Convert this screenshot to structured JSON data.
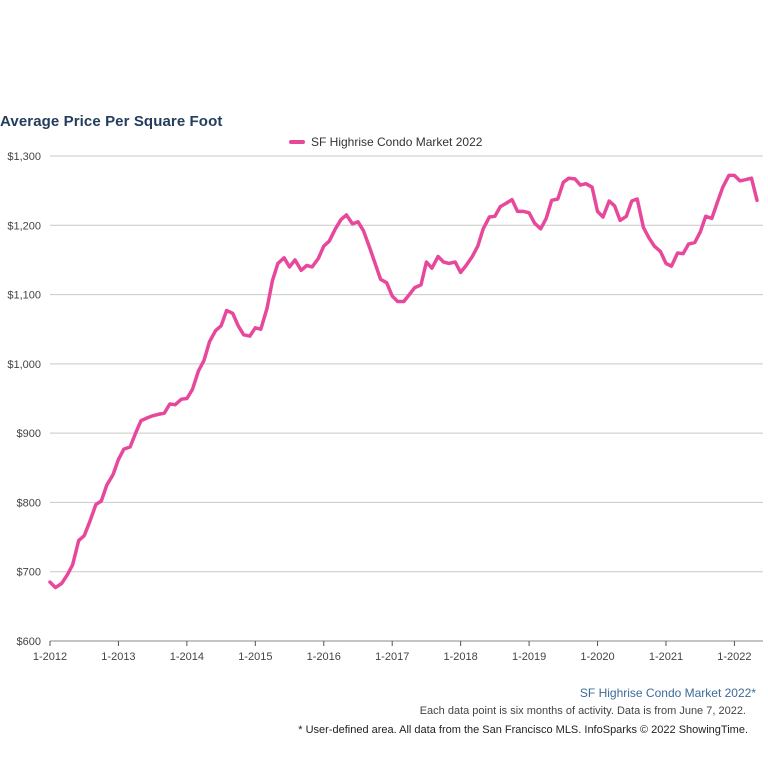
{
  "chart_data": {
    "type": "line",
    "title": "Average Price Per Square Foot",
    "xlabel": "",
    "ylabel": "",
    "ylim": [
      600,
      1300
    ],
    "yticks": [
      600,
      700,
      800,
      900,
      1000,
      1100,
      1200,
      1300
    ],
    "ytick_labels": [
      "$600",
      "$700",
      "$800",
      "$900",
      "$1,000",
      "$1,100",
      "$1,200",
      "$1,300"
    ],
    "xticks": [
      2012,
      2013,
      2014,
      2015,
      2016,
      2017,
      2018,
      2019,
      2020,
      2021,
      2022
    ],
    "xtick_labels": [
      "1-2012",
      "1-2013",
      "1-2014",
      "1-2015",
      "1-2016",
      "1-2017",
      "1-2018",
      "1-2019",
      "1-2020",
      "1-2021",
      "1-2022"
    ],
    "xlim": [
      2012,
      2022.33
    ],
    "grid": true,
    "series": [
      {
        "name": "SF Highrise Condo Market 2022",
        "color": "#e8489c",
        "points": [
          [
            2012.0,
            685
          ],
          [
            2012.08,
            677
          ],
          [
            2012.17,
            683
          ],
          [
            2012.25,
            695
          ],
          [
            2012.33,
            710
          ],
          [
            2012.42,
            745
          ],
          [
            2012.5,
            752
          ],
          [
            2012.58,
            772
          ],
          [
            2012.67,
            797
          ],
          [
            2012.75,
            802
          ],
          [
            2012.83,
            825
          ],
          [
            2012.92,
            840
          ],
          [
            2013.0,
            862
          ],
          [
            2013.08,
            877
          ],
          [
            2013.17,
            880
          ],
          [
            2013.25,
            900
          ],
          [
            2013.33,
            918
          ],
          [
            2013.42,
            922
          ],
          [
            2013.5,
            925
          ],
          [
            2013.58,
            927
          ],
          [
            2013.67,
            929
          ],
          [
            2013.75,
            942
          ],
          [
            2013.83,
            941
          ],
          [
            2013.92,
            949
          ],
          [
            2014.0,
            950
          ],
          [
            2014.08,
            963
          ],
          [
            2014.17,
            990
          ],
          [
            2014.25,
            1005
          ],
          [
            2014.33,
            1032
          ],
          [
            2014.42,
            1048
          ],
          [
            2014.5,
            1055
          ],
          [
            2014.58,
            1077
          ],
          [
            2014.67,
            1073
          ],
          [
            2014.75,
            1055
          ],
          [
            2014.83,
            1042
          ],
          [
            2014.92,
            1040
          ],
          [
            2015.0,
            1052
          ],
          [
            2015.08,
            1050
          ],
          [
            2015.17,
            1080
          ],
          [
            2015.25,
            1120
          ],
          [
            2015.33,
            1145
          ],
          [
            2015.42,
            1153
          ],
          [
            2015.5,
            1140
          ],
          [
            2015.58,
            1150
          ],
          [
            2015.67,
            1135
          ],
          [
            2015.75,
            1142
          ],
          [
            2015.83,
            1140
          ],
          [
            2015.92,
            1152
          ],
          [
            2016.0,
            1170
          ],
          [
            2016.08,
            1177
          ],
          [
            2016.17,
            1195
          ],
          [
            2016.25,
            1208
          ],
          [
            2016.33,
            1215
          ],
          [
            2016.42,
            1202
          ],
          [
            2016.5,
            1205
          ],
          [
            2016.58,
            1192
          ],
          [
            2016.67,
            1168
          ],
          [
            2016.75,
            1145
          ],
          [
            2016.83,
            1122
          ],
          [
            2016.92,
            1117
          ],
          [
            2017.0,
            1098
          ],
          [
            2017.08,
            1090
          ],
          [
            2017.17,
            1090
          ],
          [
            2017.25,
            1100
          ],
          [
            2017.33,
            1110
          ],
          [
            2017.42,
            1114
          ],
          [
            2017.5,
            1147
          ],
          [
            2017.58,
            1138
          ],
          [
            2017.67,
            1155
          ],
          [
            2017.75,
            1147
          ],
          [
            2017.83,
            1145
          ],
          [
            2017.92,
            1147
          ],
          [
            2018.0,
            1132
          ],
          [
            2018.08,
            1142
          ],
          [
            2018.17,
            1155
          ],
          [
            2018.25,
            1170
          ],
          [
            2018.33,
            1195
          ],
          [
            2018.42,
            1212
          ],
          [
            2018.5,
            1213
          ],
          [
            2018.58,
            1227
          ],
          [
            2018.67,
            1232
          ],
          [
            2018.75,
            1237
          ],
          [
            2018.83,
            1220
          ],
          [
            2018.92,
            1220
          ],
          [
            2019.0,
            1218
          ],
          [
            2019.08,
            1203
          ],
          [
            2019.17,
            1195
          ],
          [
            2019.25,
            1210
          ],
          [
            2019.33,
            1236
          ],
          [
            2019.42,
            1238
          ],
          [
            2019.5,
            1262
          ],
          [
            2019.58,
            1268
          ],
          [
            2019.67,
            1267
          ],
          [
            2019.75,
            1258
          ],
          [
            2019.83,
            1260
          ],
          [
            2019.92,
            1255
          ],
          [
            2020.0,
            1220
          ],
          [
            2020.08,
            1212
          ],
          [
            2020.17,
            1235
          ],
          [
            2020.25,
            1228
          ],
          [
            2020.33,
            1207
          ],
          [
            2020.42,
            1213
          ],
          [
            2020.5,
            1235
          ],
          [
            2020.58,
            1238
          ],
          [
            2020.67,
            1197
          ],
          [
            2020.75,
            1182
          ],
          [
            2020.83,
            1170
          ],
          [
            2020.92,
            1162
          ],
          [
            2021.0,
            1145
          ],
          [
            2021.08,
            1141
          ],
          [
            2021.17,
            1160
          ],
          [
            2021.25,
            1159
          ],
          [
            2021.33,
            1173
          ],
          [
            2021.42,
            1175
          ],
          [
            2021.5,
            1190
          ],
          [
            2021.58,
            1213
          ],
          [
            2021.67,
            1210
          ],
          [
            2021.75,
            1233
          ],
          [
            2021.83,
            1255
          ],
          [
            2021.92,
            1272
          ],
          [
            2022.0,
            1272
          ],
          [
            2022.08,
            1264
          ],
          [
            2022.17,
            1266
          ],
          [
            2022.25,
            1268
          ],
          [
            2022.33,
            1236
          ]
        ]
      }
    ]
  },
  "legend": {
    "label": "SF Highrise Condo Market 2022"
  },
  "footer": {
    "source": "SF Highrise Condo Market 2022*",
    "note": "Each data point is six months of activity. Data is from June 7, 2022.",
    "credit": "* User-defined area. All data from the San Francisco MLS. InfoSparks © 2022 ShowingTime."
  }
}
